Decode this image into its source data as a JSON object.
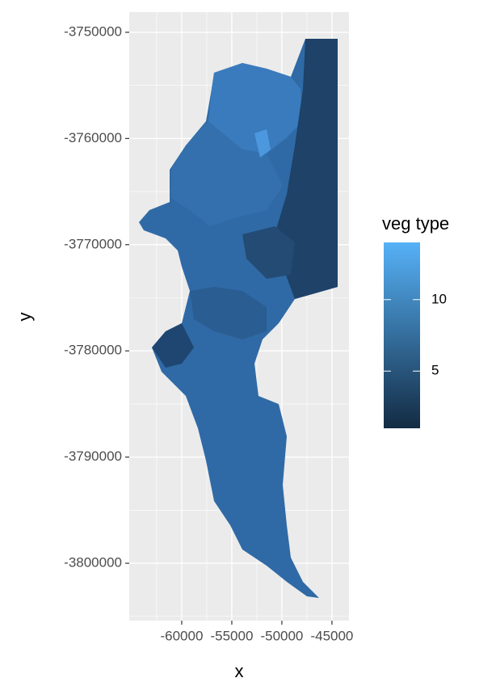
{
  "chart_data": {
    "type": "raster",
    "x_label": "x",
    "y_label": "y",
    "xlim": [
      -65240,
      -43300
    ],
    "ylim": [
      -3805400,
      -3748100
    ],
    "xticks": [
      -60000,
      -55000,
      -50000,
      -45000
    ],
    "yticks": [
      -3750000,
      -3760000,
      -3770000,
      -3780000,
      -3790000,
      -3800000
    ],
    "grid": true,
    "legend": {
      "title": "veg type",
      "limits": [
        1,
        14
      ],
      "ticks": [
        5,
        10
      ],
      "colors": [
        "#132B43",
        "#56B1F7"
      ]
    }
  }
}
